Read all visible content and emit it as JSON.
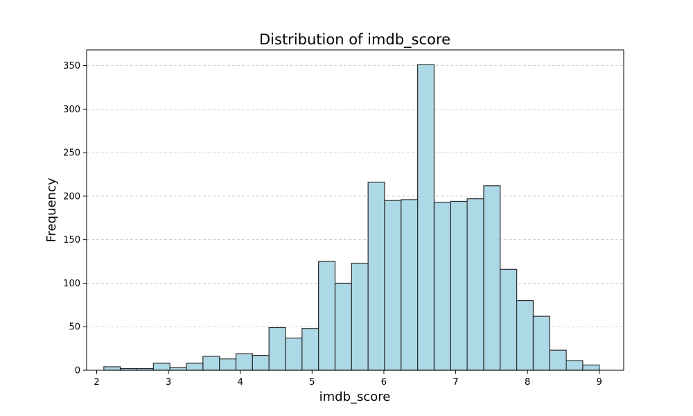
{
  "chart_data": {
    "type": "bar",
    "title": "Distribution of imdb_score",
    "xlabel": "imdb_score",
    "ylabel": "Frequency",
    "xlim": [
      1.86,
      9.34
    ],
    "ylim": [
      0,
      368
    ],
    "xticks": [
      2,
      3,
      4,
      5,
      6,
      7,
      8,
      9
    ],
    "yticks": [
      0,
      50,
      100,
      150,
      200,
      250,
      300,
      350
    ],
    "grid": "y-dashed",
    "bar_color": "#add8e6",
    "edge_color": "#2b2b2b",
    "bins": {
      "start": 2.1,
      "width": 0.23,
      "values": [
        4,
        2,
        2,
        8,
        3,
        8,
        16,
        13,
        19,
        17,
        49,
        37,
        48,
        125,
        100,
        123,
        216,
        195,
        196,
        351,
        193,
        194,
        197,
        212,
        116,
        80,
        62,
        23,
        11,
        6
      ]
    }
  }
}
